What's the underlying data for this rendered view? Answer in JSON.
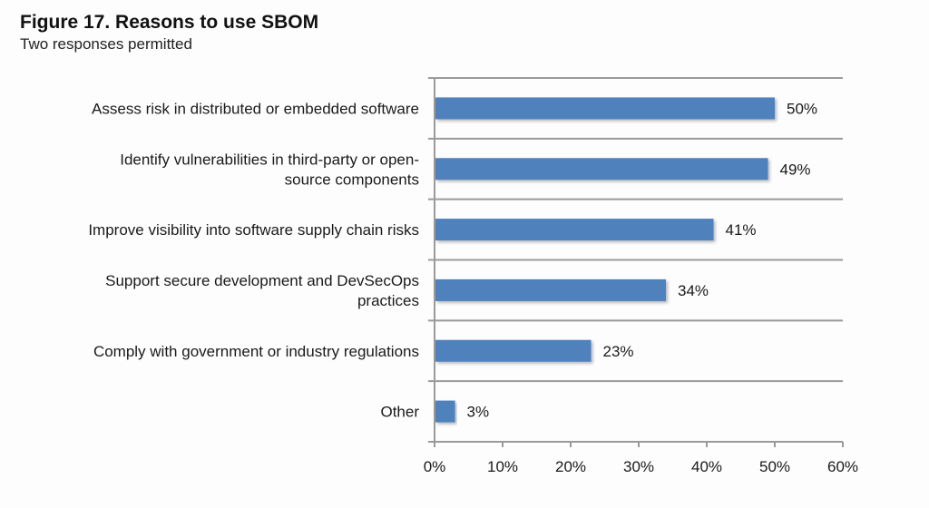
{
  "chart_data": {
    "type": "bar",
    "orientation": "horizontal",
    "title": "Figure 17. Reasons to use SBOM",
    "subtitle": "Two responses permitted",
    "categories": [
      [
        "Assess risk in distributed or embedded software"
      ],
      [
        "Identify vulnerabilities in third-party or open-",
        "source components"
      ],
      [
        "Improve visibility into software supply chain risks"
      ],
      [
        "Support secure development and DevSecOps",
        "practices"
      ],
      [
        "Comply with government or industry regulations"
      ],
      [
        "Other"
      ]
    ],
    "values": [
      50,
      49,
      41,
      34,
      23,
      3
    ],
    "value_labels": [
      "50%",
      "49%",
      "41%",
      "34%",
      "23%",
      "3%"
    ],
    "xlabel": "",
    "ylabel": "",
    "xlim": [
      0,
      60
    ],
    "xticks": [
      0,
      10,
      20,
      30,
      40,
      50,
      60
    ],
    "xtick_labels": [
      "0%",
      "10%",
      "20%",
      "30%",
      "40%",
      "50%",
      "60%"
    ],
    "grid": "horizontal separators between categories",
    "bar_color": "#4f81bd",
    "legend": "none"
  }
}
